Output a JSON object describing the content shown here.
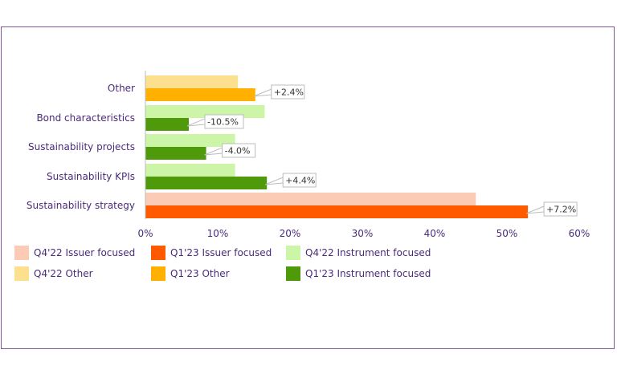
{
  "chart_data": {
    "type": "bar",
    "orientation": "horizontal",
    "categories": [
      "Other",
      "Bond characteristics",
      "Sustainability projects",
      "Sustainability KPIs",
      "Sustainability strategy"
    ],
    "series": [
      {
        "name": "Q4'22 Issuer focused",
        "color": "#fbcbb5",
        "values": [
          null,
          null,
          null,
          null,
          45.7
        ]
      },
      {
        "name": "Q1'23 Issuer focused",
        "color": "#ff5a00",
        "values": [
          null,
          null,
          null,
          null,
          52.9
        ]
      },
      {
        "name": "Q4'22 Instrument focused",
        "color": "#ccf5a8",
        "values": [
          null,
          16.5,
          12.4,
          12.4,
          null
        ]
      },
      {
        "name": "Q1'23 Instrument focused",
        "color": "#4f9a0a",
        "values": [
          null,
          6.0,
          8.4,
          16.8,
          null
        ]
      },
      {
        "name": "Q4'22 Other",
        "color": "#fde08d",
        "values": [
          12.8,
          null,
          null,
          null,
          null
        ]
      },
      {
        "name": "Q1'23 Other",
        "color": "#ffb000",
        "values": [
          15.2,
          null,
          null,
          null,
          null
        ]
      }
    ],
    "annotations": [
      "+2.4%",
      "-10.5%",
      "-4.0%",
      "+4.4%",
      "+7.2%"
    ],
    "x_ticks": [
      "0%",
      "10%",
      "20%",
      "30%",
      "40%",
      "50%",
      "60%"
    ],
    "xlim": [
      0,
      60
    ],
    "grid": false,
    "legend_position": "bottom"
  },
  "legend": {
    "row1": [
      "Q4'22 Issuer focused",
      "Q1'23 Issuer focused",
      "Q4'22 Instrument focused"
    ],
    "row2": [
      "Q4'22 Other",
      "Q1'23 Other",
      "Q1'23 Instrument focused"
    ]
  },
  "colors": {
    "q4_issuer": "#fbcbb5",
    "q1_issuer": "#ff5a00",
    "q4_instrument": "#ccf5a8",
    "q1_instrument": "#4f9a0a",
    "q4_other": "#fde08d",
    "q1_other": "#ffb000"
  }
}
